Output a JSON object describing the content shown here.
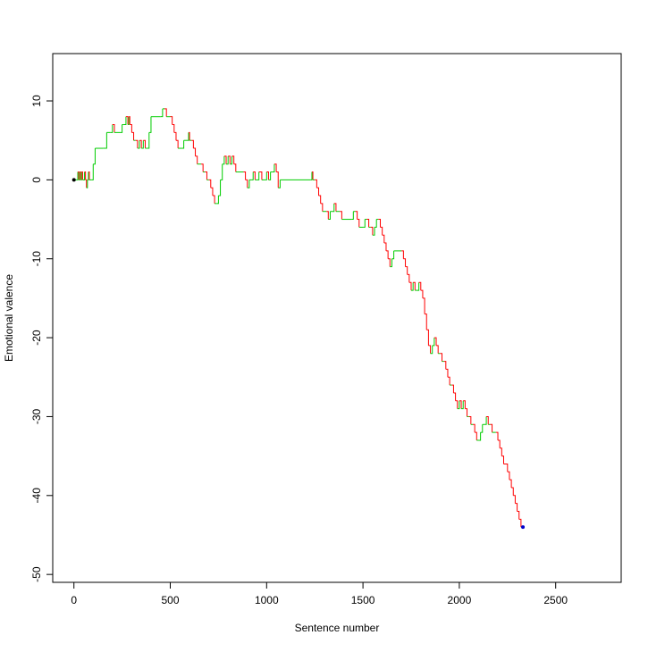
{
  "chart_data": {
    "type": "line",
    "title": "",
    "xlabel": "Sentence number",
    "ylabel": "Emotional valence",
    "xlim": [
      -110,
      2840
    ],
    "ylim": [
      -51,
      16
    ],
    "x_ticks": [
      0,
      500,
      1000,
      1500,
      2000,
      2500
    ],
    "y_ticks": [
      10,
      0,
      -10,
      -20,
      -30,
      -40,
      -50
    ],
    "grid": false,
    "legend": "none",
    "colors": {
      "rise": "#00cc00",
      "fall": "#ff0000",
      "start_marker": "#000000",
      "end_marker": "#0000cc"
    },
    "series": [
      {
        "points": [
          [
            0,
            0
          ],
          [
            15,
            0
          ],
          [
            20,
            1
          ],
          [
            25,
            0
          ],
          [
            30,
            1
          ],
          [
            35,
            0
          ],
          [
            40,
            1
          ],
          [
            45,
            0
          ],
          [
            50,
            0
          ],
          [
            55,
            1
          ],
          [
            60,
            0
          ],
          [
            65,
            -1
          ],
          [
            70,
            0
          ],
          [
            75,
            1
          ],
          [
            80,
            0
          ],
          [
            90,
            0
          ],
          [
            100,
            2
          ],
          [
            110,
            4
          ],
          [
            150,
            4
          ],
          [
            170,
            6
          ],
          [
            190,
            6
          ],
          [
            200,
            7
          ],
          [
            210,
            6
          ],
          [
            245,
            6
          ],
          [
            250,
            7
          ],
          [
            260,
            7
          ],
          [
            270,
            8
          ],
          [
            280,
            7
          ],
          [
            285,
            8
          ],
          [
            290,
            7
          ],
          [
            300,
            6
          ],
          [
            310,
            5
          ],
          [
            320,
            5
          ],
          [
            330,
            4
          ],
          [
            340,
            5
          ],
          [
            350,
            4
          ],
          [
            360,
            5
          ],
          [
            370,
            4
          ],
          [
            380,
            4
          ],
          [
            390,
            6
          ],
          [
            400,
            8
          ],
          [
            450,
            8
          ],
          [
            460,
            9
          ],
          [
            470,
            9
          ],
          [
            480,
            8
          ],
          [
            500,
            8
          ],
          [
            510,
            7
          ],
          [
            520,
            6
          ],
          [
            530,
            5
          ],
          [
            540,
            4
          ],
          [
            560,
            4
          ],
          [
            570,
            5
          ],
          [
            590,
            5
          ],
          [
            595,
            6
          ],
          [
            600,
            5
          ],
          [
            610,
            5
          ],
          [
            620,
            4
          ],
          [
            630,
            3
          ],
          [
            640,
            2
          ],
          [
            660,
            2
          ],
          [
            670,
            1
          ],
          [
            680,
            1
          ],
          [
            690,
            0
          ],
          [
            700,
            0
          ],
          [
            710,
            -1
          ],
          [
            720,
            -2
          ],
          [
            730,
            -3
          ],
          [
            740,
            -3
          ],
          [
            750,
            -2
          ],
          [
            760,
            0
          ],
          [
            770,
            2
          ],
          [
            780,
            3
          ],
          [
            790,
            2
          ],
          [
            800,
            3
          ],
          [
            810,
            2
          ],
          [
            820,
            3
          ],
          [
            830,
            2
          ],
          [
            840,
            1
          ],
          [
            850,
            1
          ],
          [
            880,
            1
          ],
          [
            890,
            0
          ],
          [
            900,
            -1
          ],
          [
            910,
            0
          ],
          [
            920,
            0
          ],
          [
            930,
            1
          ],
          [
            940,
            0
          ],
          [
            950,
            0
          ],
          [
            960,
            1
          ],
          [
            975,
            0
          ],
          [
            990,
            0
          ],
          [
            1000,
            1
          ],
          [
            1010,
            0
          ],
          [
            1020,
            1
          ],
          [
            1030,
            1
          ],
          [
            1040,
            2
          ],
          [
            1050,
            1
          ],
          [
            1060,
            -1
          ],
          [
            1070,
            0
          ],
          [
            1230,
            0
          ],
          [
            1235,
            1
          ],
          [
            1240,
            0
          ],
          [
            1250,
            0
          ],
          [
            1260,
            -1
          ],
          [
            1270,
            -2
          ],
          [
            1280,
            -3
          ],
          [
            1290,
            -4
          ],
          [
            1310,
            -4
          ],
          [
            1320,
            -5
          ],
          [
            1330,
            -4
          ],
          [
            1340,
            -4
          ],
          [
            1350,
            -3
          ],
          [
            1360,
            -4
          ],
          [
            1380,
            -4
          ],
          [
            1390,
            -5
          ],
          [
            1440,
            -5
          ],
          [
            1450,
            -4
          ],
          [
            1460,
            -4
          ],
          [
            1470,
            -5
          ],
          [
            1480,
            -6
          ],
          [
            1500,
            -6
          ],
          [
            1510,
            -5
          ],
          [
            1520,
            -5
          ],
          [
            1530,
            -6
          ],
          [
            1540,
            -6
          ],
          [
            1550,
            -7
          ],
          [
            1560,
            -6
          ],
          [
            1570,
            -5
          ],
          [
            1580,
            -5
          ],
          [
            1590,
            -6
          ],
          [
            1600,
            -7
          ],
          [
            1610,
            -8
          ],
          [
            1620,
            -9
          ],
          [
            1630,
            -10
          ],
          [
            1640,
            -11
          ],
          [
            1650,
            -10
          ],
          [
            1660,
            -9
          ],
          [
            1700,
            -9
          ],
          [
            1710,
            -10
          ],
          [
            1720,
            -11
          ],
          [
            1730,
            -12
          ],
          [
            1740,
            -13
          ],
          [
            1750,
            -14
          ],
          [
            1760,
            -13
          ],
          [
            1770,
            -14
          ],
          [
            1780,
            -14
          ],
          [
            1790,
            -13
          ],
          [
            1800,
            -14
          ],
          [
            1810,
            -15
          ],
          [
            1820,
            -17
          ],
          [
            1830,
            -19
          ],
          [
            1840,
            -21
          ],
          [
            1850,
            -22
          ],
          [
            1860,
            -21
          ],
          [
            1870,
            -20
          ],
          [
            1880,
            -21
          ],
          [
            1890,
            -22
          ],
          [
            1900,
            -22
          ],
          [
            1910,
            -23
          ],
          [
            1920,
            -23
          ],
          [
            1930,
            -24
          ],
          [
            1940,
            -25
          ],
          [
            1950,
            -26
          ],
          [
            1960,
            -26
          ],
          [
            1970,
            -27
          ],
          [
            1980,
            -28
          ],
          [
            1990,
            -29
          ],
          [
            2000,
            -28
          ],
          [
            2010,
            -29
          ],
          [
            2020,
            -28
          ],
          [
            2030,
            -29
          ],
          [
            2040,
            -30
          ],
          [
            2050,
            -30
          ],
          [
            2060,
            -31
          ],
          [
            2070,
            -31
          ],
          [
            2080,
            -32
          ],
          [
            2090,
            -33
          ],
          [
            2100,
            -33
          ],
          [
            2110,
            -32
          ],
          [
            2120,
            -31
          ],
          [
            2130,
            -31
          ],
          [
            2140,
            -30
          ],
          [
            2150,
            -31
          ],
          [
            2160,
            -31
          ],
          [
            2170,
            -32
          ],
          [
            2190,
            -32
          ],
          [
            2200,
            -33
          ],
          [
            2210,
            -34
          ],
          [
            2220,
            -35
          ],
          [
            2230,
            -36
          ],
          [
            2250,
            -37
          ],
          [
            2260,
            -38
          ],
          [
            2270,
            -39
          ],
          [
            2280,
            -40
          ],
          [
            2290,
            -41
          ],
          [
            2300,
            -42
          ],
          [
            2310,
            -43
          ],
          [
            2320,
            -44
          ],
          [
            2330,
            -44
          ]
        ]
      }
    ]
  }
}
